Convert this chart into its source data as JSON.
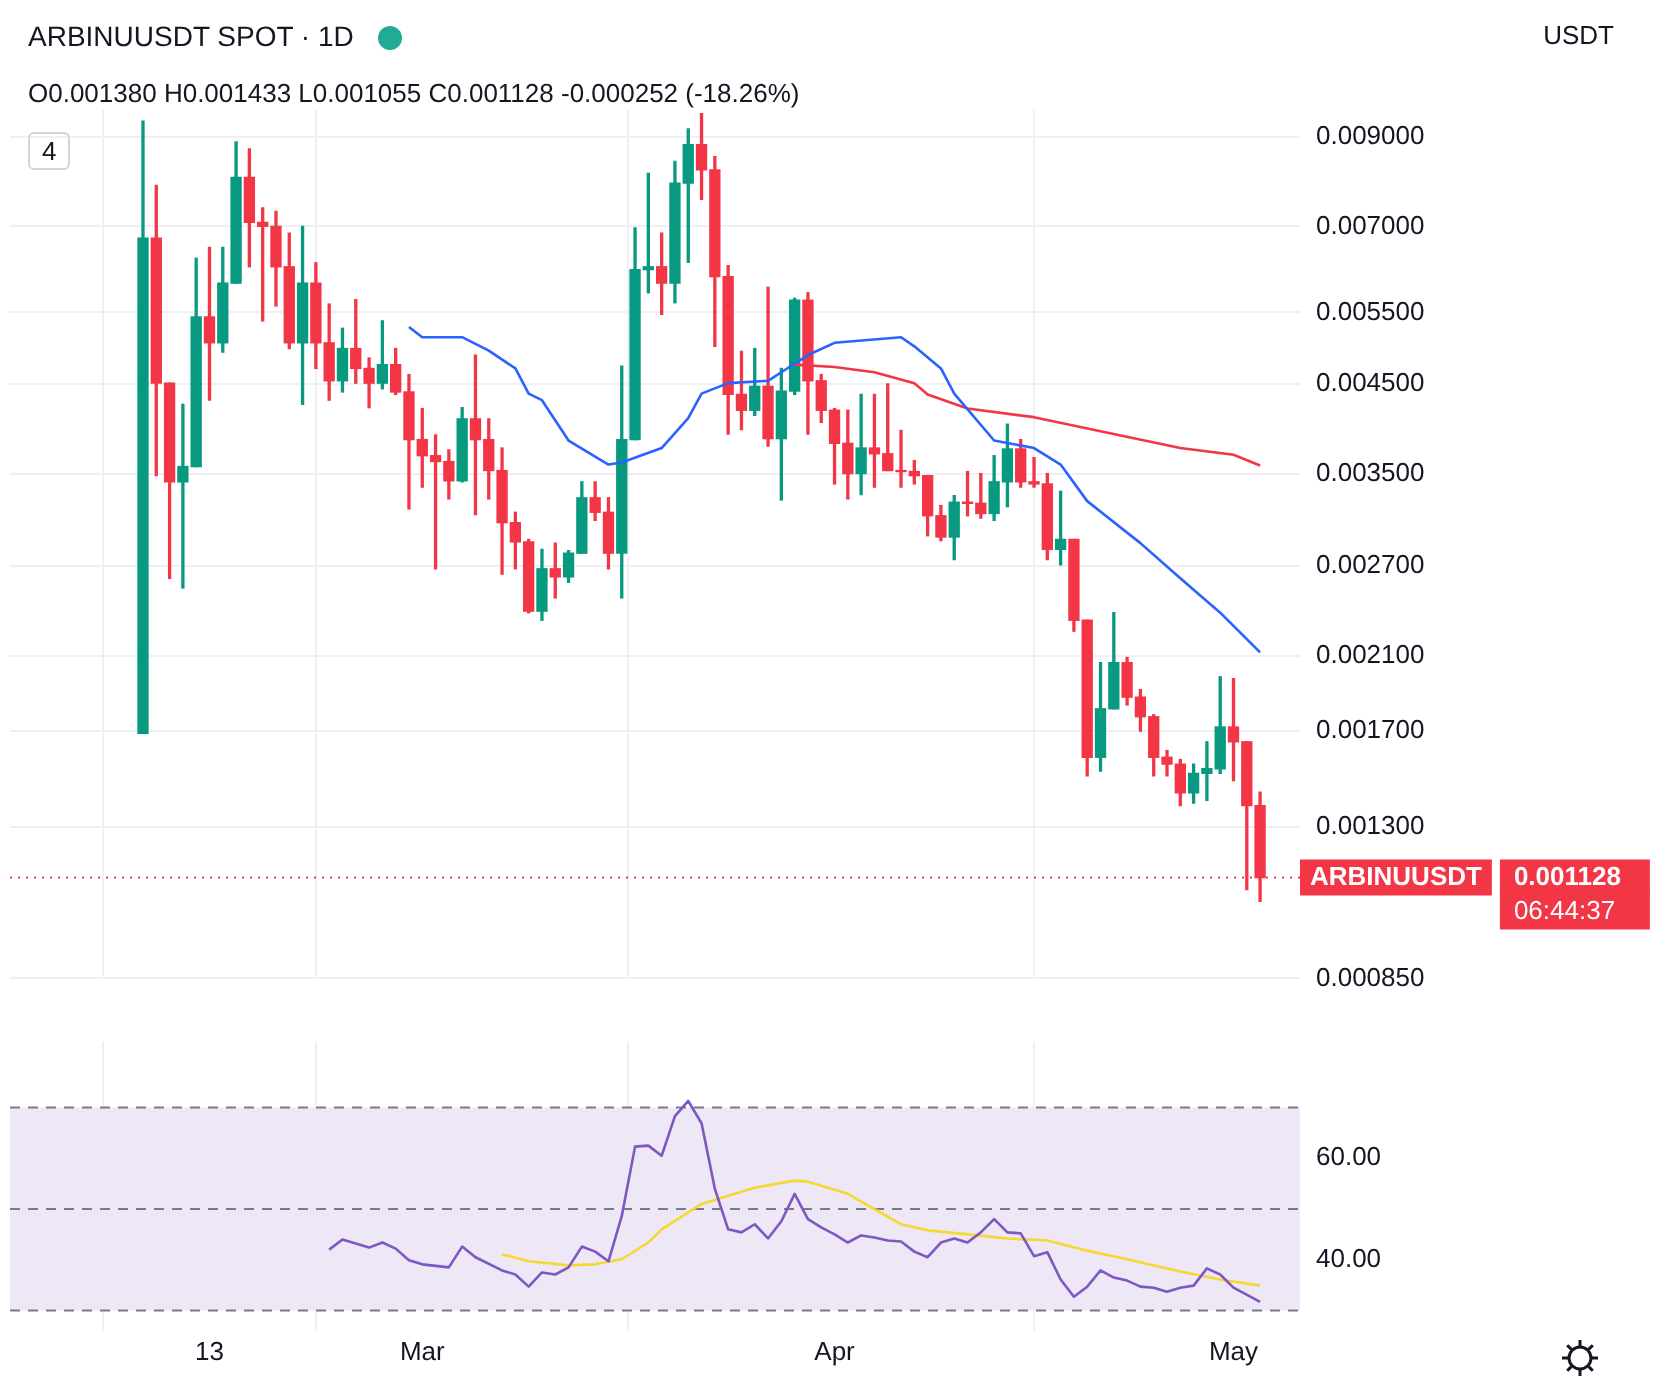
{
  "chart_data": [
    {
      "type": "candlestick",
      "title": "ARBINUUSDT SPOT · 1D",
      "subtitle": "O0.001380 H0.001433 L0.001055 C0.001128 -0.000252 (-18.26%)",
      "x": [
        "--02-08",
        "--02-09",
        "--02-10",
        "--02-11",
        "--02-12",
        "--02-13",
        "--02-14",
        "--02-15",
        "--02-16",
        "--02-17",
        "--02-18",
        "--02-19",
        "--02-20",
        "--02-21",
        "--02-22",
        "--02-23",
        "--02-24",
        "--02-25",
        "--02-26",
        "--02-27",
        "--02-28",
        "--03-01",
        "--03-02",
        "--03-03",
        "--03-04",
        "--03-05",
        "--03-06",
        "--03-07",
        "--03-08",
        "--03-09",
        "--03-10",
        "--03-11",
        "--03-12",
        "--03-13",
        "--03-14",
        "--03-15",
        "--03-16",
        "--03-17",
        "--03-18",
        "--03-19",
        "--03-20",
        "--03-21",
        "--03-22",
        "--03-23",
        "--03-24",
        "--03-25",
        "--03-26",
        "--03-27",
        "--03-28",
        "--03-29",
        "--03-30",
        "--03-31",
        "--04-01",
        "--04-02",
        "--04-03",
        "--04-04",
        "--04-05",
        "--04-06",
        "--04-07",
        "--04-08",
        "--04-09",
        "--04-10",
        "--04-11",
        "--04-12",
        "--04-13",
        "--04-14",
        "--04-15",
        "--04-16",
        "--04-17",
        "--04-18",
        "--04-19",
        "--04-20",
        "--04-21",
        "--04-22",
        "--04-23",
        "--04-24",
        "--04-25",
        "--04-26",
        "--04-27",
        "--04-28",
        "--04-29",
        "--04-30",
        "--05-01",
        "--05-02",
        "--05-03"
      ],
      "ohlc": [
        [
          0.00169,
          0.0094,
          0.00169,
          0.00677
        ],
        [
          0.00677,
          0.00785,
          0.00348,
          0.00451
        ],
        [
          0.00451,
          0.00451,
          0.00261,
          0.00342
        ],
        [
          0.00342,
          0.00425,
          0.00254,
          0.00357
        ],
        [
          0.00357,
          0.0064,
          0.00357,
          0.00543
        ],
        [
          0.00543,
          0.0066,
          0.0043,
          0.00505
        ],
        [
          0.00505,
          0.0066,
          0.00492,
          0.00597
        ],
        [
          0.00597,
          0.00887,
          0.00597,
          0.00803
        ],
        [
          0.00803,
          0.0087,
          0.00625,
          0.00708
        ],
        [
          0.00708,
          0.00737,
          0.00537,
          0.007
        ],
        [
          0.007,
          0.0073,
          0.0056,
          0.00625
        ],
        [
          0.00625,
          0.00687,
          0.00497,
          0.00505
        ],
        [
          0.00505,
          0.007,
          0.00425,
          0.00597
        ],
        [
          0.00597,
          0.00632,
          0.0047,
          0.00505
        ],
        [
          0.00505,
          0.00563,
          0.0043,
          0.00454
        ],
        [
          0.00454,
          0.00526,
          0.0044,
          0.00497
        ],
        [
          0.00497,
          0.0057,
          0.00451,
          0.0047
        ],
        [
          0.0047,
          0.00484,
          0.00421,
          0.00451
        ],
        [
          0.00451,
          0.00537,
          0.00444,
          0.00475
        ],
        [
          0.00475,
          0.00497,
          0.00437,
          0.0044
        ],
        [
          0.0044,
          0.00462,
          0.00317,
          0.00385
        ],
        [
          0.00385,
          0.0042,
          0.00337,
          0.00368
        ],
        [
          0.00368,
          0.0039,
          0.00268,
          0.00362
        ],
        [
          0.00362,
          0.00374,
          0.00326,
          0.00343
        ],
        [
          0.00343,
          0.00421,
          0.00342,
          0.00408
        ],
        [
          0.00408,
          0.00488,
          0.00312,
          0.00385
        ],
        [
          0.00385,
          0.00408,
          0.00326,
          0.00353
        ],
        [
          0.00353,
          0.00376,
          0.00264,
          0.00305
        ],
        [
          0.00305,
          0.00314,
          0.00268,
          0.00289
        ],
        [
          0.00289,
          0.00291,
          0.00237,
          0.00238
        ],
        [
          0.00238,
          0.00283,
          0.00232,
          0.00268
        ],
        [
          0.00268,
          0.00288,
          0.00247,
          0.00262
        ],
        [
          0.00262,
          0.00282,
          0.00258,
          0.0028
        ],
        [
          0.0028,
          0.00342,
          0.0028,
          0.00327
        ],
        [
          0.00327,
          0.00342,
          0.00307,
          0.00314
        ],
        [
          0.00314,
          0.00327,
          0.00268,
          0.0028
        ],
        [
          0.0028,
          0.00473,
          0.00247,
          0.00385
        ],
        [
          0.00385,
          0.00697,
          0.00385,
          0.0062
        ],
        [
          0.0062,
          0.00812,
          0.00581,
          0.00625
        ],
        [
          0.00625,
          0.00687,
          0.00547,
          0.00597
        ],
        [
          0.00597,
          0.0084,
          0.00565,
          0.0079
        ],
        [
          0.0079,
          0.0092,
          0.00633,
          0.0088
        ],
        [
          0.0088,
          0.0096,
          0.00755,
          0.0082
        ],
        [
          0.0082,
          0.00851,
          0.005,
          0.00608
        ],
        [
          0.00608,
          0.00627,
          0.00391,
          0.00437
        ],
        [
          0.00437,
          0.00493,
          0.00396,
          0.00418
        ],
        [
          0.00418,
          0.00497,
          0.00412,
          0.00447
        ],
        [
          0.00447,
          0.0059,
          0.00378,
          0.00386
        ],
        [
          0.00386,
          0.0047,
          0.00325,
          0.00441
        ],
        [
          0.00441,
          0.00572,
          0.00437,
          0.00569
        ],
        [
          0.00569,
          0.00581,
          0.00391,
          0.00454
        ],
        [
          0.00454,
          0.00462,
          0.00404,
          0.00418
        ],
        [
          0.00418,
          0.0042,
          0.0034,
          0.00381
        ],
        [
          0.00381,
          0.00418,
          0.00326,
          0.0035
        ],
        [
          0.0035,
          0.00437,
          0.0033,
          0.00376
        ],
        [
          0.00376,
          0.00437,
          0.00337,
          0.0037
        ],
        [
          0.0037,
          0.0045,
          0.00353,
          0.00353
        ],
        [
          0.00353,
          0.00395,
          0.00337,
          0.00352
        ],
        [
          0.00352,
          0.00363,
          0.0034,
          0.00348
        ],
        [
          0.00348,
          0.00348,
          0.00294,
          0.00311
        ],
        [
          0.00311,
          0.0032,
          0.0029,
          0.00293
        ],
        [
          0.00293,
          0.00329,
          0.00275,
          0.00323
        ],
        [
          0.00323,
          0.00352,
          0.00311,
          0.00322
        ],
        [
          0.00322,
          0.0035,
          0.00309,
          0.00313
        ],
        [
          0.00313,
          0.00368,
          0.00307,
          0.00342
        ],
        [
          0.00342,
          0.00402,
          0.00319,
          0.00375
        ],
        [
          0.00375,
          0.00385,
          0.00337,
          0.00342
        ],
        [
          0.00342,
          0.00366,
          0.00337,
          0.0034
        ],
        [
          0.0034,
          0.0035,
          0.00275,
          0.00283
        ],
        [
          0.00283,
          0.00333,
          0.00271,
          0.00291
        ],
        [
          0.00291,
          0.00291,
          0.00225,
          0.00232
        ],
        [
          0.00232,
          0.00232,
          0.0015,
          0.00158
        ],
        [
          0.00158,
          0.00206,
          0.00152,
          0.00181
        ],
        [
          0.00181,
          0.00237,
          0.00181,
          0.00206
        ],
        [
          0.00206,
          0.00209,
          0.00183,
          0.00187
        ],
        [
          0.00187,
          0.00191,
          0.0017,
          0.00177
        ],
        [
          0.00177,
          0.00178,
          0.0015,
          0.00158
        ],
        [
          0.00158,
          0.00161,
          0.0015,
          0.00155
        ],
        [
          0.00155,
          0.00157,
          0.00138,
          0.00143
        ],
        [
          0.00143,
          0.00155,
          0.00139,
          0.00151
        ],
        [
          0.00151,
          0.00165,
          0.0014,
          0.00153
        ],
        [
          0.00153,
          0.00198,
          0.00151,
          0.00172
        ],
        [
          0.00172,
          0.00197,
          0.00148,
          0.00165
        ],
        [
          0.00165,
          0.00165,
          0.00109,
          0.00138
        ],
        [
          0.00138,
          0.001433,
          0.001055,
          0.001128
        ]
      ],
      "colors": [
        "#089981",
        "#f23645",
        "#f23645",
        "#089981",
        "#089981",
        "#f23645",
        "#089981",
        "#089981",
        "#f23645",
        "#f23645",
        "#f23645",
        "#f23645",
        "#089981",
        "#f23645",
        "#f23645",
        "#089981",
        "#f23645",
        "#f23645",
        "#089981",
        "#f23645",
        "#f23645",
        "#f23645",
        "#f23645",
        "#f23645",
        "#089981",
        "#f23645",
        "#f23645",
        "#f23645",
        "#f23645",
        "#f23645",
        "#089981",
        "#f23645",
        "#089981",
        "#089981",
        "#f23645",
        "#f23645",
        "#089981",
        "#089981",
        "#089981",
        "#f23645",
        "#089981",
        "#089981",
        "#f23645",
        "#f23645",
        "#f23645",
        "#f23645",
        "#089981",
        "#f23645",
        "#089981",
        "#089981",
        "#f23645",
        "#f23645",
        "#f23645",
        "#f23645",
        "#089981",
        "#f23645",
        "#f23645",
        "#f23645",
        "#f23645",
        "#f23645",
        "#f23645",
        "#089981",
        "#f23645",
        "#f23645",
        "#089981",
        "#089981",
        "#f23645",
        "#f23645",
        "#f23645",
        "#089981",
        "#f23645",
        "#f23645",
        "#089981",
        "#089981",
        "#f23645",
        "#f23645",
        "#f23645",
        "#f23645",
        "#f23645",
        "#089981",
        "#089981",
        "#089981",
        "#f23645",
        "#f23645",
        "#f23645"
      ],
      "series": [
        {
          "type": "line",
          "color": "#2962ff",
          "x": [
            "--02-28",
            "--03-01",
            "--03-04",
            "--03-06",
            "--03-08",
            "--03-09",
            "--03-10",
            "--03-12",
            "--03-15",
            "--03-16",
            "--03-19",
            "--03-21",
            "--03-22",
            "--03-24",
            "--03-27",
            "--03-28",
            "--03-30",
            "--04-01",
            "--04-06",
            "--04-07",
            "--04-09",
            "--04-10",
            "--04-13",
            "--04-16",
            "--04-18",
            "--04-20",
            "--04-24",
            "--04-27",
            "--04-30",
            "--05-03"
          ],
          "values": [
            0.00528,
            0.00513,
            0.00513,
            0.00494,
            0.0047,
            0.00438,
            0.0043,
            0.00384,
            0.00359,
            0.00361,
            0.00376,
            0.00409,
            0.00438,
            0.00451,
            0.00454,
            0.00465,
            0.00488,
            0.00505,
            0.00513,
            0.005,
            0.0047,
            0.00438,
            0.00384,
            0.00376,
            0.00359,
            0.00324,
            0.00288,
            0.00261,
            0.00237,
            0.00212
          ]
        },
        {
          "type": "line",
          "color": "#f23645",
          "x": [
            "--03-29",
            "--04-01",
            "--04-04",
            "--04-07",
            "--04-08",
            "--04-11",
            "--04-16",
            "--04-21",
            "--04-27",
            "--05-01",
            "--05-03"
          ],
          "values": [
            0.00475,
            0.00472,
            0.00465,
            0.00451,
            0.00437,
            0.0042,
            0.0041,
            0.00394,
            0.00376,
            0.00369,
            0.00358
          ]
        }
      ],
      "log": "y",
      "xlim": [
        "--01-29",
        "--05-06"
      ],
      "xticks": [
        {
          "value": "--02-13",
          "label": null
        },
        {
          "value": "--03-01",
          "label": null
        },
        {
          "value": "--04-01",
          "label": null
        },
        {
          "value": "--05-01",
          "label": null
        }
      ],
      "ylim": [
        0.00085,
        0.0097
      ],
      "yticks": [
        {
          "value": 0.00085,
          "label": "0.000850"
        },
        {
          "value": 0.0013,
          "label": "0.001300"
        },
        {
          "value": 0.0017,
          "label": "0.001700"
        },
        {
          "value": 0.0021,
          "label": "0.002100"
        },
        {
          "value": 0.0027,
          "label": "0.002700"
        },
        {
          "value": 0.0035,
          "label": "0.003500"
        },
        {
          "value": 0.0045,
          "label": "0.004500"
        },
        {
          "value": 0.0055,
          "label": "0.005500"
        },
        {
          "value": 0.007,
          "label": "0.007000"
        },
        {
          "value": 0.009,
          "label": "0.009000"
        }
      ],
      "grid": true,
      "tick_labels": "y",
      "ref_lines": [
        {
          "axis": "y",
          "value": 0.001128,
          "label": "ARBINUUSDT",
          "color": "#f23645",
          "line_style": "dotted"
        }
      ],
      "annotations": [
        "USDT",
        "4",
        "0.001128",
        "06:44:37"
      ]
    },
    {
      "type": "line",
      "series": [
        {
          "color": "#7e57c2",
          "x": [
            "--02-22",
            "--02-23",
            "--02-25",
            "--02-26",
            "--02-27",
            "--02-28",
            "--03-01",
            "--03-03",
            "--03-04",
            "--03-05",
            "--03-07",
            "--03-08",
            "--03-09",
            "--03-10",
            "--03-11",
            "--03-12",
            "--03-13",
            "--03-14",
            "--03-15",
            "--03-16",
            "--03-17",
            "--03-18",
            "--03-19",
            "--03-20",
            "--03-21",
            "--03-22",
            "--03-23",
            "--03-24",
            "--03-25",
            "--03-26",
            "--03-27",
            "--03-28",
            "--03-29",
            "--03-30",
            "--03-31",
            "--04-01",
            "--04-02",
            "--04-03",
            "--04-04",
            "--04-05",
            "--04-06",
            "--04-07",
            "--04-08",
            "--04-09",
            "--04-10",
            "--04-11",
            "--04-12",
            "--04-13",
            "--04-14",
            "--04-15",
            "--04-16",
            "--04-17",
            "--04-18",
            "--04-19",
            "--04-20",
            "--04-21",
            "--04-22",
            "--04-23",
            "--04-24",
            "--04-25",
            "--04-26",
            "--04-27",
            "--04-28",
            "--04-29",
            "--04-30",
            "--05-01",
            "--05-03"
          ],
          "values": [
            42.0,
            44.0,
            42.4,
            43.4,
            42.2,
            39.9,
            39.1,
            38.5,
            42.6,
            40.5,
            37.9,
            37.1,
            34.7,
            37.5,
            37.1,
            38.5,
            42.6,
            41.6,
            39.7,
            48.6,
            62.3,
            62.5,
            60.5,
            68.3,
            71.3,
            66.9,
            54.0,
            46.0,
            45.4,
            47.0,
            44.2,
            47.6,
            53.0,
            48.0,
            46.4,
            45.0,
            43.4,
            44.8,
            44.4,
            43.8,
            43.6,
            41.6,
            40.5,
            43.4,
            44.2,
            43.4,
            45.4,
            48.0,
            45.4,
            45.2,
            40.7,
            41.5,
            36.1,
            32.7,
            34.7,
            37.9,
            36.5,
            35.9,
            34.7,
            34.5,
            33.7,
            34.5,
            34.9,
            38.3,
            37.1,
            34.5,
            31.7
          ]
        },
        {
          "color": "#f5d933",
          "x": [
            "--03-07",
            "--03-09",
            "--03-12",
            "--03-14",
            "--03-16",
            "--03-18",
            "--03-19",
            "--03-22",
            "--03-25",
            "--03-26",
            "--03-29",
            "--03-30",
            "--04-02",
            "--04-04",
            "--04-06",
            "--04-08",
            "--04-11",
            "--04-14",
            "--04-17",
            "--04-20",
            "--04-23",
            "--04-27",
            "--04-30",
            "--05-03"
          ],
          "values": [
            41.1,
            39.7,
            38.9,
            39.1,
            40.1,
            43.4,
            46.0,
            51.0,
            53.4,
            54.2,
            55.6,
            55.4,
            53.0,
            50.0,
            47.0,
            45.8,
            45.0,
            44.2,
            43.8,
            41.8,
            40.1,
            37.7,
            36.1,
            34.9
          ]
        }
      ],
      "xlim": [
        "--01-29",
        "--05-06"
      ],
      "xticks": [
        {
          "value": "--02-13",
          "label": "13"
        },
        {
          "value": "--03-01",
          "label": "Mar"
        },
        {
          "value": "--04-01",
          "label": "Apr"
        },
        {
          "value": "--05-01",
          "label": "May"
        }
      ],
      "ylim": [
        26,
        83
      ],
      "yticks": [
        {
          "value": 40,
          "label": "40.00"
        },
        {
          "value": 60,
          "label": "60.00"
        }
      ],
      "grid": true,
      "bands": [
        {
          "axis": "y",
          "from": 30,
          "to": 70,
          "color": "#ede7f6"
        }
      ],
      "ref_lines": [
        {
          "axis": "y",
          "value": 70,
          "color": "#787b86",
          "line_style": "dashed"
        },
        {
          "axis": "y",
          "value": 50,
          "color": "#787b86",
          "line_style": "dashed"
        },
        {
          "axis": "y",
          "value": 30,
          "color": "#787b86",
          "line_style": "dashed"
        }
      ]
    }
  ]
}
